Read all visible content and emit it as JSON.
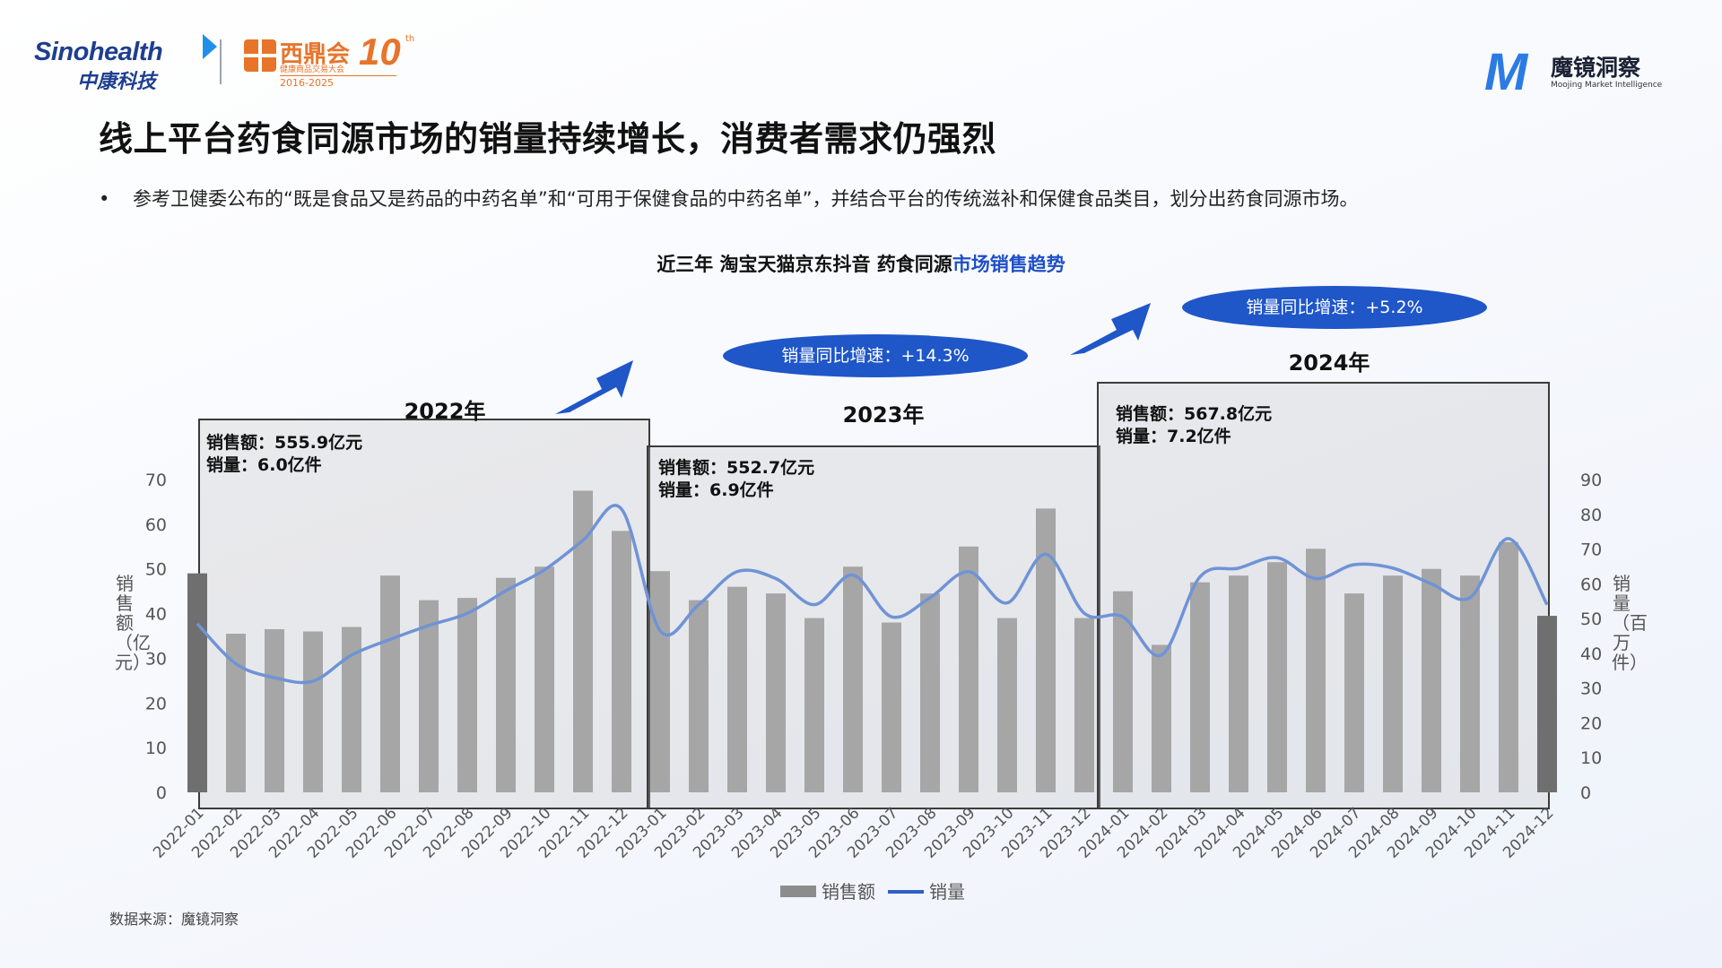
{
  "header": {
    "sinohealth_en": "Sinohealth",
    "sinohealth_cn": "中康科技",
    "xidinghui_name": "西鼎会",
    "xidinghui_number": "10",
    "xidinghui_sup": "th",
    "xidinghui_sub": "健康商品交易大会",
    "xidinghui_years": "2016-2025",
    "moojing_cn": "魔镜洞察",
    "moojing_en": "Moojing Market Intelligence"
  },
  "title": "线上平台药食同源市场的销量持续增长，消费者需求仍强烈",
  "bullet_symbol": "•",
  "bullet_text": "参考卫健委公布的“既是食品又是药品的中药名单”和“可用于保健食品的中药名单”，并结合平台的传统滋补和保健食品类目，划分出药食同源市场。",
  "chart_title_part1": "近三年 淘宝天猫京东抖音 药食同源",
  "chart_title_part2": "市场销售趋势",
  "periods": [
    {
      "year": "2022年",
      "sales": "销售额：555.9亿元",
      "volume": "销量：6.0亿件"
    },
    {
      "year": "2023年",
      "sales": "销售额：552.7亿元",
      "volume": "销量：6.9亿件",
      "growth": "销量同比增速：+14.3%"
    },
    {
      "year": "2024年",
      "sales": "销售额：567.8亿元",
      "volume": "销量：7.2亿件",
      "growth": "销量同比增速：+5.2%"
    }
  ],
  "colors": {
    "bar": "#a6a6a6",
    "bar_edge": "#6f6f6f",
    "line": "#6f93d6",
    "oval": "#1f56c8",
    "arrow": "#1f56c8",
    "accent_text": "#1f4fc7"
  },
  "chart_data": {
    "type": "bar",
    "categories": [
      "2022-01",
      "2022-02",
      "2022-03",
      "2022-04",
      "2022-05",
      "2022-06",
      "2022-07",
      "2022-08",
      "2022-09",
      "2022-10",
      "2022-11",
      "2022-12",
      "2023-01",
      "2023-02",
      "2023-03",
      "2023-04",
      "2023-05",
      "2023-06",
      "2023-07",
      "2023-08",
      "2023-09",
      "2023-10",
      "2023-11",
      "2023-12",
      "2024-01",
      "2024-02",
      "2024-03",
      "2024-04",
      "2024-05",
      "2024-06",
      "2024-07",
      "2024-08",
      "2024-09",
      "2024-10",
      "2024-11",
      "2024-12"
    ],
    "series": [
      {
        "name": "销售额",
        "type": "bar",
        "axis": "left",
        "values": [
          49,
          35.5,
          36.5,
          36,
          37,
          48.5,
          43,
          43.5,
          48,
          50.5,
          67.5,
          58.5,
          49.5,
          43,
          46,
          44.5,
          39,
          50.5,
          38,
          44.5,
          55,
          39,
          63.5,
          39,
          45,
          33,
          47,
          48.5,
          51.5,
          54.5,
          44.5,
          48.5,
          50,
          48.5,
          56,
          39.5
        ]
      },
      {
        "name": "销量",
        "type": "line",
        "axis": "right",
        "values": [
          48.5,
          37,
          33,
          32,
          39.5,
          44,
          48,
          51.5,
          58,
          64,
          72.5,
          81.5,
          46.5,
          54,
          63.5,
          61.5,
          54,
          62.5,
          50.5,
          56,
          63.5,
          54.5,
          68.5,
          51.5,
          50.5,
          39.5,
          62,
          64.5,
          67.5,
          61.5,
          65.5,
          64.5,
          60,
          56,
          73,
          54
        ]
      }
    ],
    "y_left": {
      "label": "销售额（亿元）",
      "ticks": [
        "0",
        "10",
        "20",
        "30",
        "40",
        "50",
        "60",
        "70"
      ],
      "range": [
        0,
        70
      ]
    },
    "y_right": {
      "label": "销量（百万件）",
      "ticks": [
        "0",
        "10",
        "20",
        "30",
        "40",
        "50",
        "60",
        "70",
        "80",
        "90"
      ],
      "range": [
        0,
        90
      ]
    },
    "legend": [
      {
        "label": "销售额"
      },
      {
        "label": "销量"
      }
    ],
    "legend_position": "bottom"
  },
  "source": "数据来源：魔镜洞察"
}
